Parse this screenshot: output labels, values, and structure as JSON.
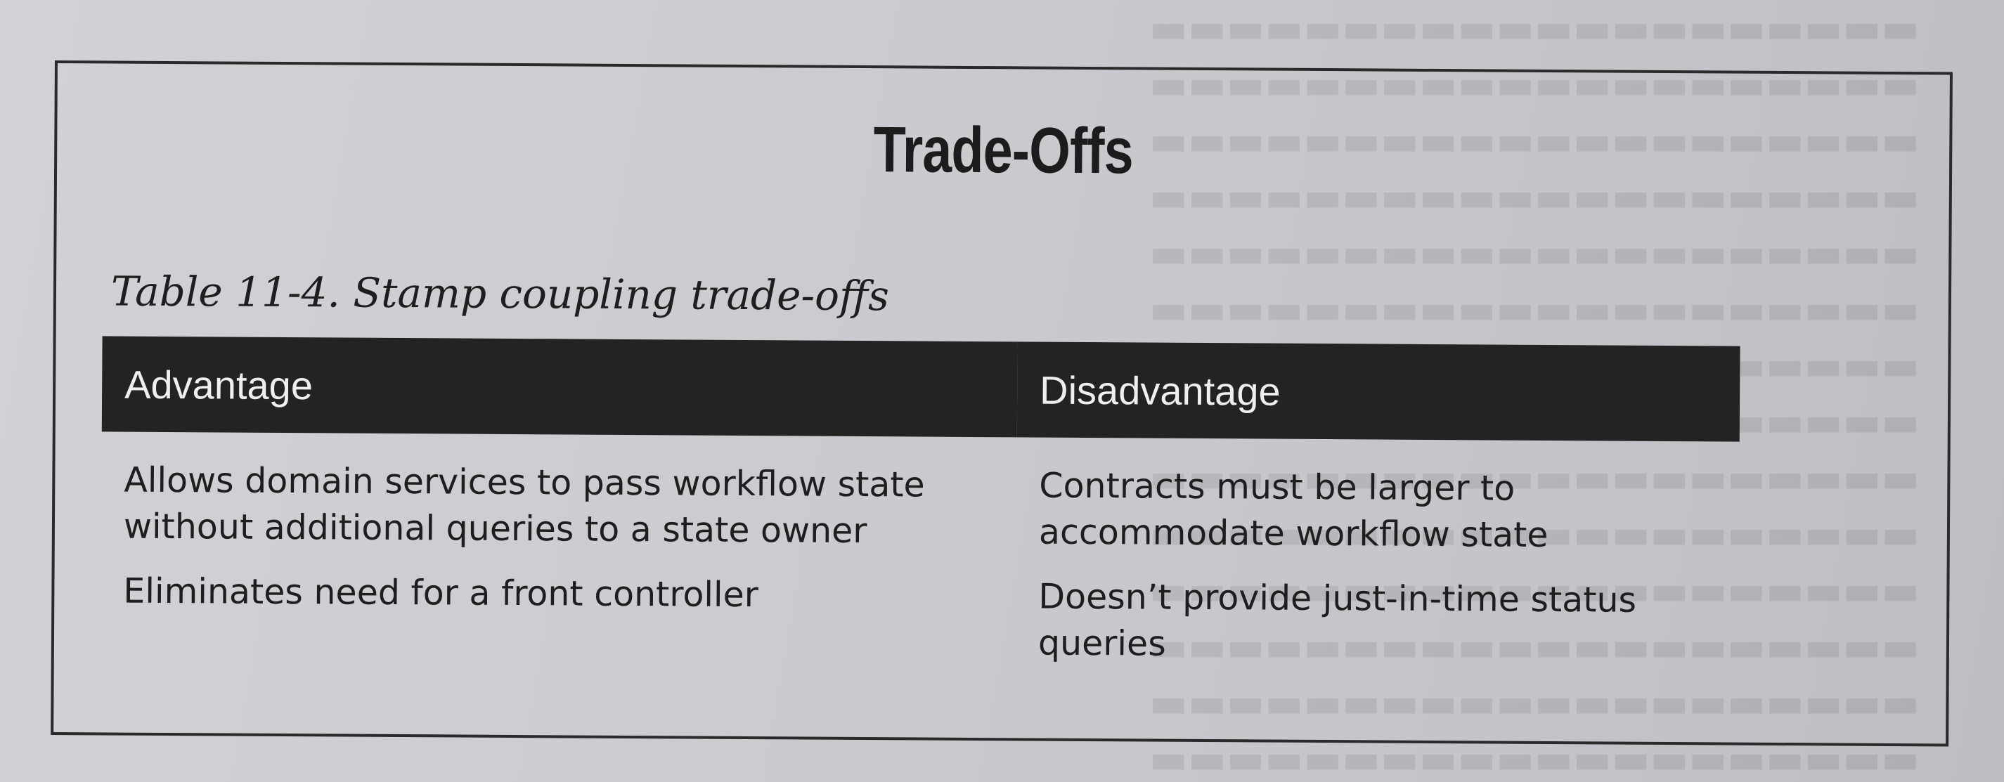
{
  "sidebar": {
    "title": "Trade-Offs"
  },
  "table": {
    "caption": "Table 11-4. Stamp coupling trade-offs",
    "headers": {
      "advantage": "Advantage",
      "disadvantage": "Disadvantage"
    },
    "rows": [
      {
        "advantage": "Allows domain services to pass workflow state without additional queries to a state owner",
        "disadvantage": "Contracts must be larger to accommodate workflow state"
      },
      {
        "advantage": "Eliminates need for a front controller",
        "disadvantage": "Doesn’t provide just-in-time status queries"
      }
    ]
  }
}
